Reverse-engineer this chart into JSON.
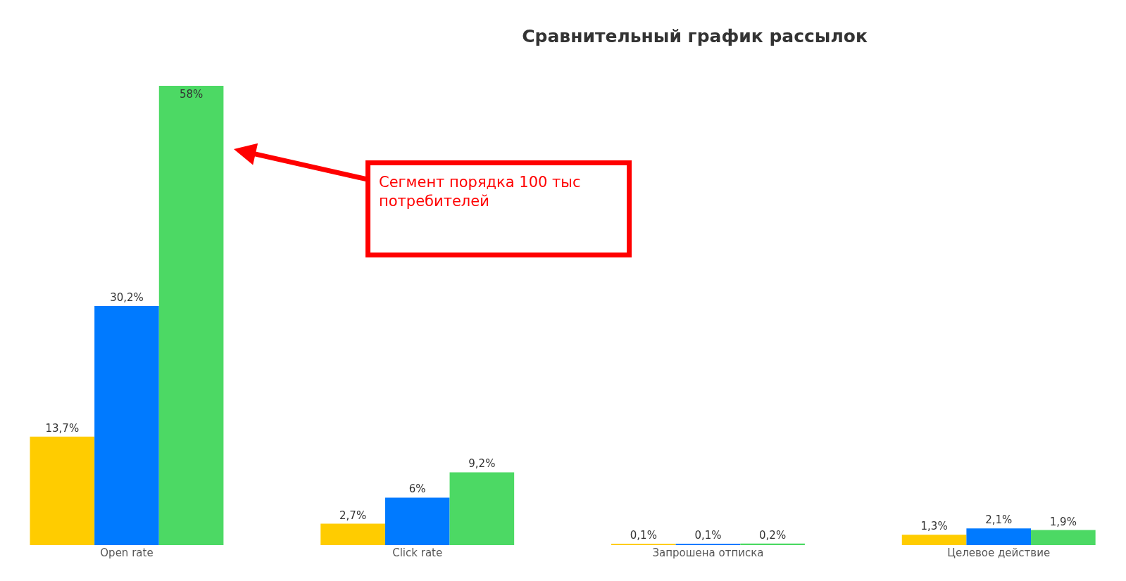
{
  "chart_data": {
    "type": "bar",
    "title": "Сравнительный график рассылок",
    "categories": [
      "Open rate",
      "Click rate",
      "Запрошена отписка",
      "Целевое действие"
    ],
    "series": [
      {
        "color": "#ffcc00",
        "values": [
          13.7,
          2.7,
          0.1,
          1.3
        ],
        "value_labels": [
          "13,7%",
          "2,7%",
          "0,1%",
          "1,3%"
        ]
      },
      {
        "color": "#007aff",
        "values": [
          30.2,
          6,
          0.1,
          2.1
        ],
        "value_labels": [
          "30,2%",
          "6%",
          "0,1%",
          "2,1%"
        ]
      },
      {
        "color": "#4cd964",
        "values": [
          58,
          9.2,
          0.2,
          1.9
        ],
        "value_labels": [
          "58%",
          "9,2%",
          "0,2%",
          "1,9%"
        ]
      }
    ],
    "annotations": [
      "Сегмент порядка 100 тыс потребителей"
    ]
  }
}
